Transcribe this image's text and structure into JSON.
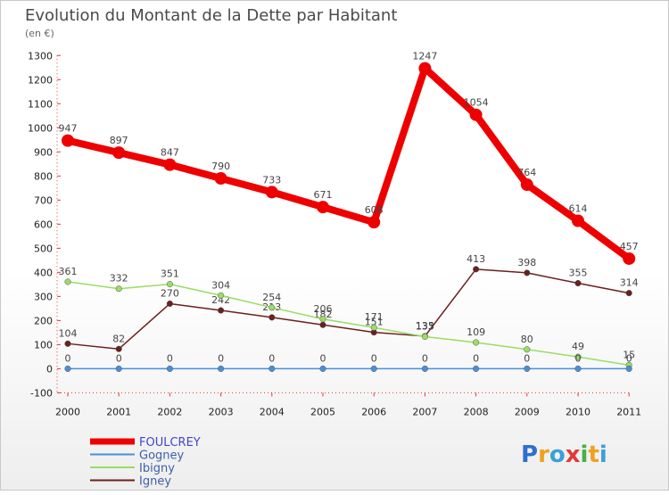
{
  "chart_data": {
    "type": "line",
    "title": "Evolution du Montant de la Dette par Habitant",
    "subtitle": "(en €)",
    "xlabel": "",
    "ylabel": "",
    "ylim": [
      -100,
      1300
    ],
    "yticks": [
      -100,
      0,
      100,
      200,
      300,
      400,
      500,
      600,
      700,
      800,
      900,
      1000,
      1100,
      1200,
      1300
    ],
    "categories": [
      "2000",
      "2001",
      "2002",
      "2003",
      "2004",
      "2005",
      "2006",
      "2007",
      "2008",
      "2009",
      "2010",
      "2011"
    ],
    "series": [
      {
        "name": "Igney",
        "color": "#6b1f1f",
        "values": [
          104,
          82,
          270,
          242,
          213,
          182,
          151,
          135,
          413,
          398,
          355,
          314
        ]
      },
      {
        "name": "Ibigny",
        "color": "#99dd66",
        "values": [
          361,
          332,
          351,
          304,
          254,
          206,
          171,
          133,
          109,
          80,
          49,
          15
        ]
      },
      {
        "name": "Gogney",
        "color": "#4a8fd6",
        "values": [
          0,
          0,
          0,
          0,
          0,
          0,
          0,
          0,
          0,
          0,
          0,
          0
        ]
      },
      {
        "name": "FOULCREY",
        "color": "#ee0000",
        "values": [
          947,
          897,
          847,
          790,
          733,
          671,
          608,
          1247,
          1054,
          764,
          614,
          457
        ]
      }
    ],
    "legend_order": [
      "FOULCREY",
      "Gogney",
      "Ibigny",
      "Igney"
    ],
    "legend_position": "bottom-left",
    "grid": false
  },
  "watermark": {
    "text": "Proxiti"
  }
}
